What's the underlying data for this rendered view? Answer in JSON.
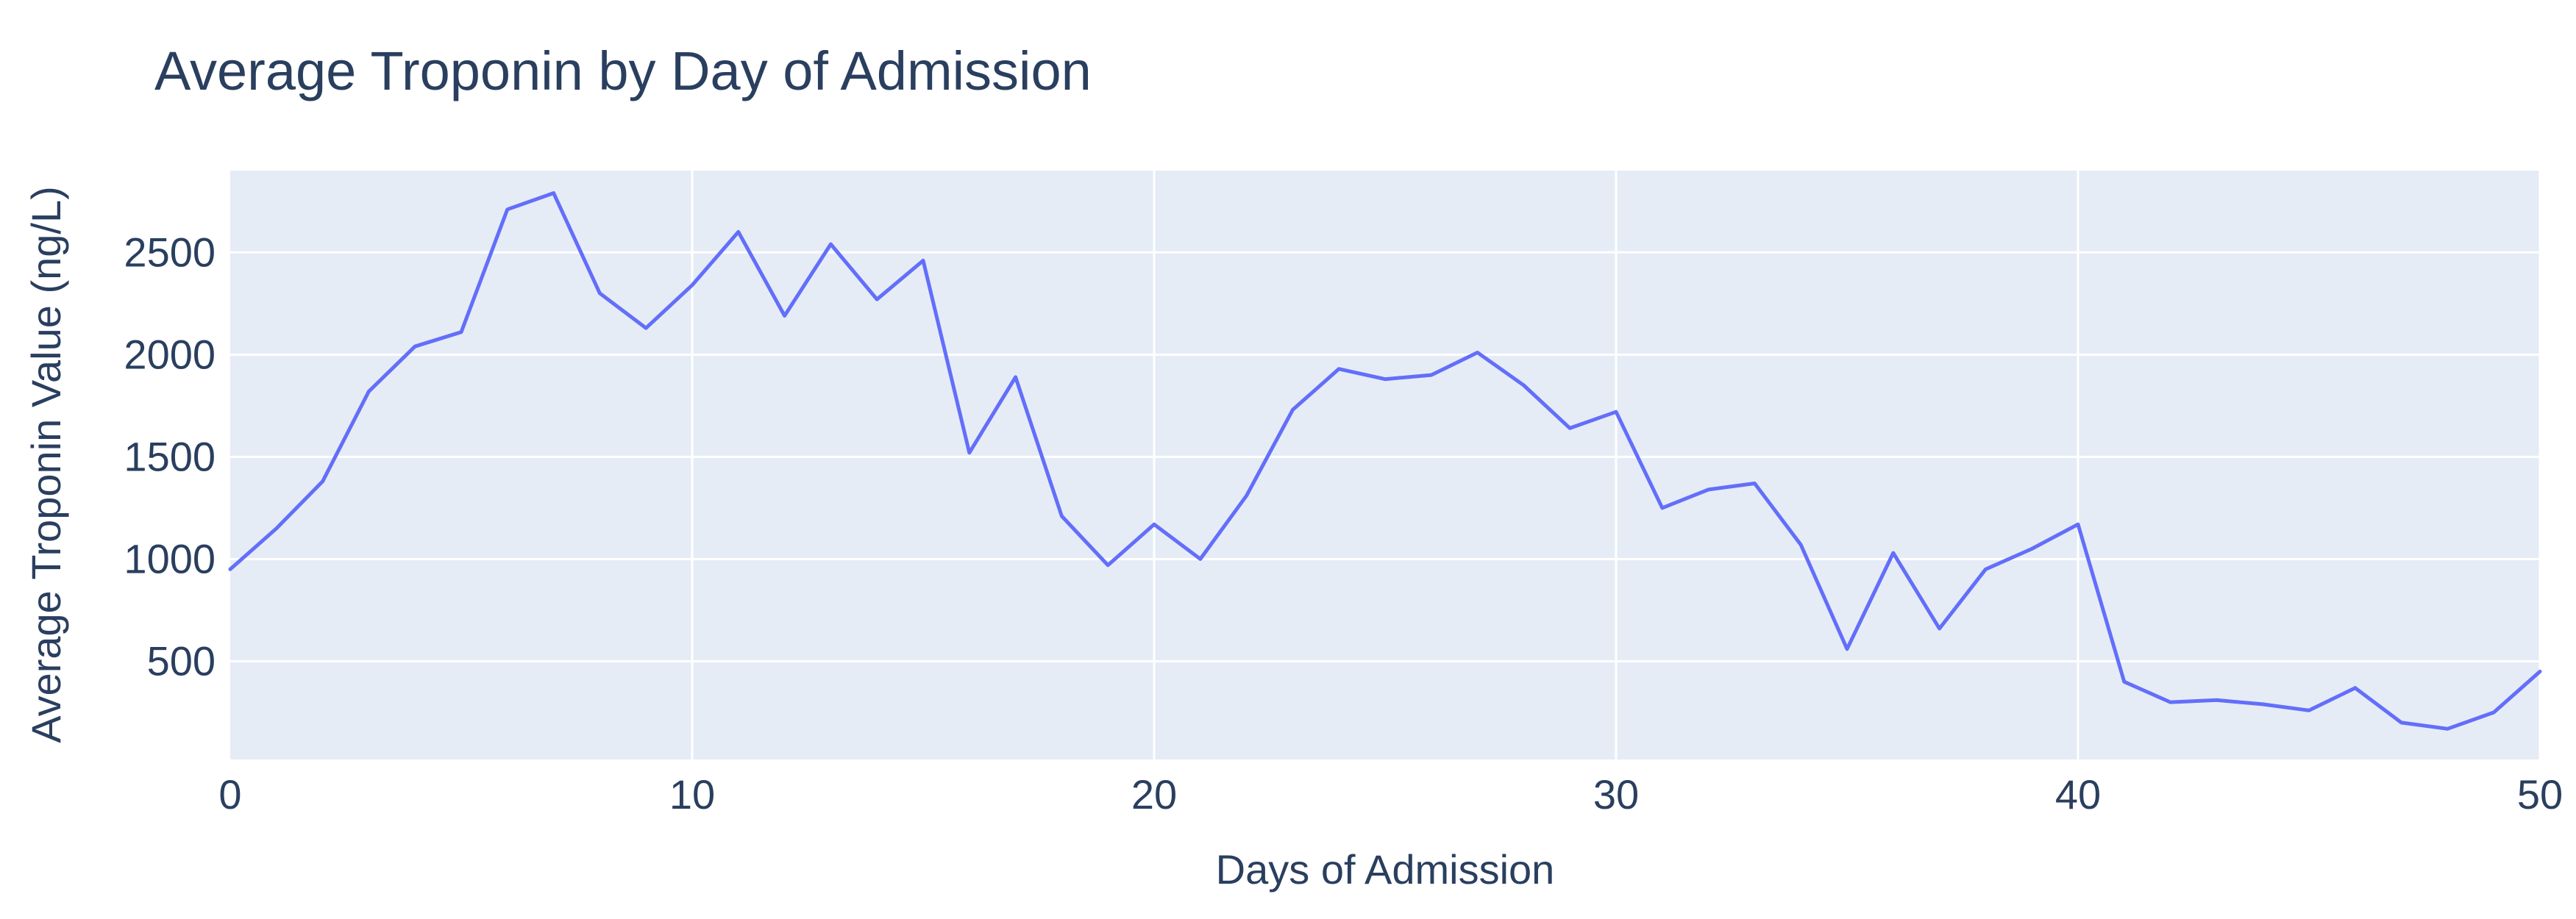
{
  "chart_data": {
    "type": "line",
    "title": "Average Troponin by Day of Admission",
    "xlabel": "Days of Admission",
    "ylabel": "Average Troponin Value (ng/L)",
    "xlim": [
      0,
      50
    ],
    "ylim": [
      20,
      2900
    ],
    "x_ticks": [
      0,
      10,
      20,
      30,
      40,
      50
    ],
    "y_ticks": [
      500,
      1000,
      1500,
      2000,
      2500
    ],
    "grid": true,
    "legend": "none",
    "colors": {
      "plot_bg": "#e5ecf6",
      "grid": "#ffffff",
      "line": "#636efa",
      "text": "#2a3f5f"
    },
    "x": [
      0,
      1,
      2,
      3,
      4,
      5,
      6,
      7,
      8,
      9,
      10,
      11,
      12,
      13,
      14,
      15,
      16,
      17,
      18,
      19,
      20,
      21,
      22,
      23,
      24,
      25,
      26,
      27,
      28,
      29,
      30,
      31,
      32,
      33,
      34,
      35,
      36,
      37,
      38,
      39,
      40,
      41,
      42,
      43,
      44,
      45,
      46,
      47,
      48,
      49,
      50
    ],
    "y": [
      950,
      1150,
      1380,
      1820,
      2040,
      2110,
      2710,
      2790,
      2300,
      2130,
      2340,
      2600,
      2190,
      2540,
      2270,
      2460,
      1520,
      1890,
      1210,
      970,
      1170,
      1000,
      1310,
      1730,
      1930,
      1880,
      1900,
      2010,
      1850,
      1640,
      1720,
      1250,
      1340,
      1370,
      1070,
      560,
      1030,
      660,
      950,
      1050,
      1170,
      400,
      300,
      310,
      290,
      260,
      370,
      200,
      170,
      250,
      450
    ]
  }
}
